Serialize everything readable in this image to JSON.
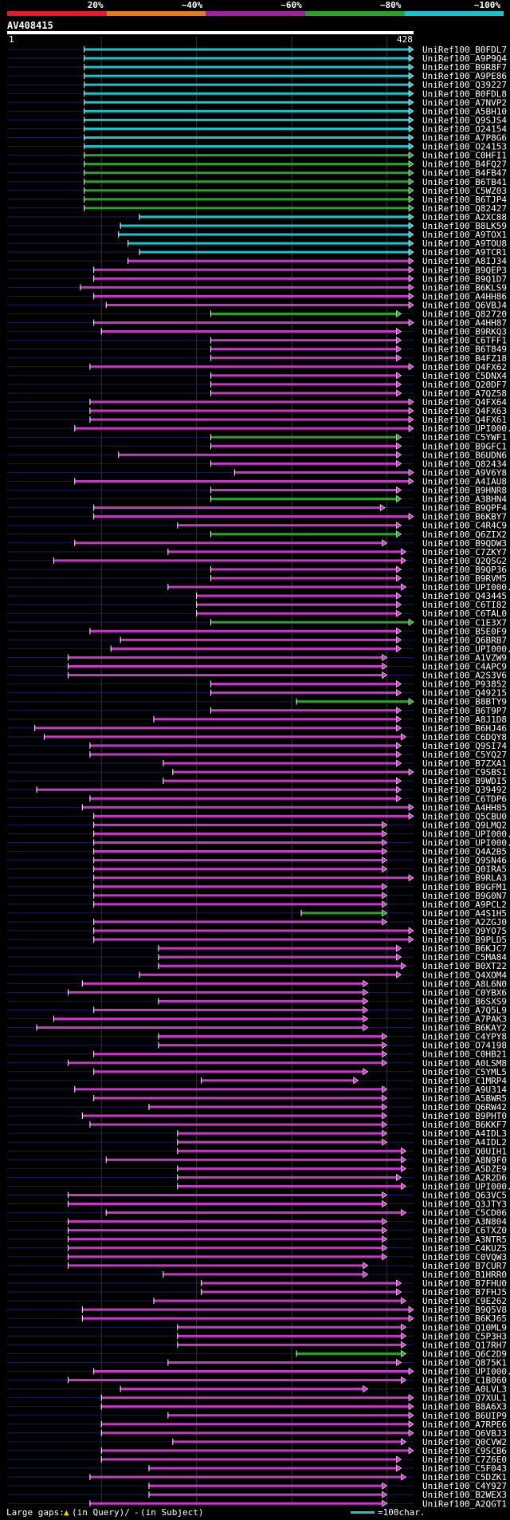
{
  "query_id": "AV408415",
  "axis": {
    "start": "1",
    "end": "428",
    "length": 428
  },
  "identity_scale": [
    {
      "label": "20%",
      "color": "#e8182f"
    },
    {
      "label": "~40%",
      "color": "#e87a1f"
    },
    {
      "label": "~60%",
      "color": "#a020a0"
    },
    {
      "label": "~80%",
      "color": "#2aa12a"
    },
    {
      "label": "~100%",
      "color": "#18c4cc"
    }
  ],
  "legend": {
    "gaps_prefix": "Large gaps: ",
    "gaps_query": "(in Query)/",
    "gaps_subject": "(in Subject)",
    "scale": "=100char."
  },
  "chart_data": {
    "type": "alignment",
    "title": "AV408415",
    "xlim": [
      1,
      428
    ],
    "hits": [
      {
        "id": "UniRef100_B0FDL7",
        "s": 82,
        "e": 428,
        "c": "cyan"
      },
      {
        "id": "UniRef100_A9P9Q4",
        "s": 82,
        "e": 428,
        "c": "cyan"
      },
      {
        "id": "UniRef100_B9R8F7",
        "s": 82,
        "e": 428,
        "c": "cyan"
      },
      {
        "id": "UniRef100_A9PE86",
        "s": 82,
        "e": 428,
        "c": "cyan"
      },
      {
        "id": "UniRef100_Q39227",
        "s": 82,
        "e": 428,
        "c": "cyan"
      },
      {
        "id": "UniRef100_B0FDL8",
        "s": 82,
        "e": 428,
        "c": "cyan"
      },
      {
        "id": "UniRef100_A7NVP2",
        "s": 82,
        "e": 428,
        "c": "cyan"
      },
      {
        "id": "UniRef100_A5BH10",
        "s": 82,
        "e": 428,
        "c": "cyan"
      },
      {
        "id": "UniRef100_Q9SJS4",
        "s": 82,
        "e": 428,
        "c": "cyan"
      },
      {
        "id": "UniRef100_O24154",
        "s": 82,
        "e": 428,
        "c": "cyan"
      },
      {
        "id": "UniRef100_A7P8G6",
        "s": 82,
        "e": 428,
        "c": "cyan"
      },
      {
        "id": "UniRef100_O24153",
        "s": 82,
        "e": 428,
        "c": "cyan"
      },
      {
        "id": "UniRef100_C0HFI1",
        "s": 82,
        "e": 428,
        "c": "green"
      },
      {
        "id": "UniRef100_B4FQ27",
        "s": 82,
        "e": 428,
        "c": "green"
      },
      {
        "id": "UniRef100_B4FB47",
        "s": 82,
        "e": 428,
        "c": "green"
      },
      {
        "id": "UniRef100_B6TB41",
        "s": 82,
        "e": 428,
        "c": "green"
      },
      {
        "id": "UniRef100_C5WZ03",
        "s": 82,
        "e": 428,
        "c": "green"
      },
      {
        "id": "UniRef100_B6TJP4",
        "s": 82,
        "e": 428,
        "c": "green"
      },
      {
        "id": "UniRef100_Q82427",
        "s": 82,
        "e": 428,
        "c": "green"
      },
      {
        "id": "UniRef100_A2XC88",
        "s": 140,
        "e": 428,
        "c": "cyan"
      },
      {
        "id": "UniRef100_B8LK59",
        "s": 120,
        "e": 428,
        "c": "cyan"
      },
      {
        "id": "UniRef100_A9TOX1",
        "s": 118,
        "e": 428,
        "c": "cyan"
      },
      {
        "id": "UniRef100_A9TOU8",
        "s": 128,
        "e": 428,
        "c": "cyan"
      },
      {
        "id": "UniRef100_A9TCR1",
        "s": 140,
        "e": 428,
        "c": "cyan"
      },
      {
        "id": "UniRef100_A8IJ34",
        "s": 128,
        "e": 428,
        "c": "magenta"
      },
      {
        "id": "UniRef100_B9QEP3",
        "s": 92,
        "e": 428,
        "c": "magenta"
      },
      {
        "id": "UniRef100_B9Q1D7",
        "s": 92,
        "e": 428,
        "c": "magenta"
      },
      {
        "id": "UniRef100_B6KLS9",
        "s": 78,
        "e": 428,
        "c": "magenta"
      },
      {
        "id": "UniRef100_A4HH86",
        "s": 92,
        "e": 428,
        "c": "magenta"
      },
      {
        "id": "UniRef100_Q6VBJ4",
        "s": 105,
        "e": 428,
        "c": "magenta"
      },
      {
        "id": "UniRef100_Q82720",
        "s": 215,
        "e": 415,
        "c": "green"
      },
      {
        "id": "UniRef100_A4HH87",
        "s": 92,
        "e": 428,
        "c": "magenta"
      },
      {
        "id": "UniRef100_B9RKQ3",
        "s": 100,
        "e": 415,
        "c": "magenta"
      },
      {
        "id": "UniRef100_C6TFF1",
        "s": 215,
        "e": 415,
        "c": "magenta"
      },
      {
        "id": "UniRef100_B6T849",
        "s": 215,
        "e": 415,
        "c": "magenta"
      },
      {
        "id": "UniRef100_B4FZ18",
        "s": 215,
        "e": 415,
        "c": "magenta"
      },
      {
        "id": "UniRef100_Q4FX62",
        "s": 88,
        "e": 428,
        "c": "magenta"
      },
      {
        "id": "UniRef100_C5DNX4",
        "s": 215,
        "e": 415,
        "c": "magenta"
      },
      {
        "id": "UniRef100_Q20DF7",
        "s": 215,
        "e": 415,
        "c": "magenta"
      },
      {
        "id": "UniRef100_A7QZ58",
        "s": 215,
        "e": 415,
        "c": "magenta"
      },
      {
        "id": "UniRef100_Q4FX64",
        "s": 88,
        "e": 428,
        "c": "magenta"
      },
      {
        "id": "UniRef100_Q4FX63",
        "s": 88,
        "e": 428,
        "c": "magenta"
      },
      {
        "id": "UniRef100_Q4FX61",
        "s": 88,
        "e": 428,
        "c": "magenta"
      },
      {
        "id": "UniRef100_UPI000...",
        "s": 72,
        "e": 428,
        "c": "magenta"
      },
      {
        "id": "UniRef100_C5YWF1",
        "s": 215,
        "e": 415,
        "c": "green"
      },
      {
        "id": "UniRef100_B9GFC1",
        "s": 215,
        "e": 415,
        "c": "magenta"
      },
      {
        "id": "UniRef100_B6UDN6",
        "s": 118,
        "e": 415,
        "c": "magenta"
      },
      {
        "id": "UniRef100_Q82434",
        "s": 215,
        "e": 415,
        "c": "magenta"
      },
      {
        "id": "UniRef100_A9V6Y8",
        "s": 240,
        "e": 428,
        "c": "magenta"
      },
      {
        "id": "UniRef100_A4IAU8",
        "s": 72,
        "e": 428,
        "c": "magenta"
      },
      {
        "id": "UniRef100_B9HNR8",
        "s": 215,
        "e": 415,
        "c": "magenta"
      },
      {
        "id": "UniRef100_A3BHN4",
        "s": 215,
        "e": 415,
        "c": "green"
      },
      {
        "id": "UniRef100_B9QPF4",
        "s": 92,
        "e": 398,
        "c": "magenta"
      },
      {
        "id": "UniRef100_B6KBY7",
        "s": 92,
        "e": 428,
        "c": "magenta"
      },
      {
        "id": "UniRef100_C4R4C9",
        "s": 180,
        "e": 415,
        "c": "magenta"
      },
      {
        "id": "UniRef100_Q6ZIX2",
        "s": 215,
        "e": 415,
        "c": "green"
      },
      {
        "id": "UniRef100_B9QDW3",
        "s": 72,
        "e": 400,
        "c": "magenta"
      },
      {
        "id": "UniRef100_C7ZKY7",
        "s": 170,
        "e": 420,
        "c": "magenta"
      },
      {
        "id": "UniRef100_Q2QSG2",
        "s": 50,
        "e": 420,
        "c": "magenta"
      },
      {
        "id": "UniRef100_B9QP36",
        "s": 215,
        "e": 415,
        "c": "magenta"
      },
      {
        "id": "UniRef100_B9RVM5",
        "s": 215,
        "e": 415,
        "c": "magenta"
      },
      {
        "id": "UniRef100_UPI000...",
        "s": 170,
        "e": 420,
        "c": "magenta"
      },
      {
        "id": "UniRef100_Q43445",
        "s": 200,
        "e": 415,
        "c": "magenta"
      },
      {
        "id": "UniRef100_C6TI82",
        "s": 200,
        "e": 415,
        "c": "magenta"
      },
      {
        "id": "UniRef100_C6TAL0",
        "s": 200,
        "e": 415,
        "c": "magenta"
      },
      {
        "id": "UniRef100_C1E3X7",
        "s": 215,
        "e": 428,
        "c": "green"
      },
      {
        "id": "UniRef100_B5E0F9",
        "s": 88,
        "e": 415,
        "c": "magenta"
      },
      {
        "id": "UniRef100_Q6BRB7",
        "s": 120,
        "e": 415,
        "c": "magenta"
      },
      {
        "id": "UniRef100_UPI000...",
        "s": 110,
        "e": 415,
        "c": "magenta"
      },
      {
        "id": "UniRef100_A1VZW9",
        "s": 65,
        "e": 400,
        "c": "magenta"
      },
      {
        "id": "UniRef100_C4APC9",
        "s": 65,
        "e": 400,
        "c": "magenta"
      },
      {
        "id": "UniRef100_A2S3V6",
        "s": 65,
        "e": 400,
        "c": "magenta"
      },
      {
        "id": "UniRef100_P93852",
        "s": 215,
        "e": 415,
        "c": "magenta"
      },
      {
        "id": "UniRef100_Q49215",
        "s": 215,
        "e": 415,
        "c": "magenta"
      },
      {
        "id": "UniRef100_B8BTY9",
        "s": 305,
        "e": 428,
        "c": "green"
      },
      {
        "id": "UniRef100_B6T9P7",
        "s": 215,
        "e": 415,
        "c": "magenta"
      },
      {
        "id": "UniRef100_A8J1D8",
        "s": 155,
        "e": 415,
        "c": "magenta"
      },
      {
        "id": "UniRef100_B6HJ46",
        "s": 30,
        "e": 415,
        "c": "magenta"
      },
      {
        "id": "UniRef100_C6DQY8",
        "s": 40,
        "e": 420,
        "c": "magenta"
      },
      {
        "id": "UniRef100_Q9SI74",
        "s": 88,
        "e": 415,
        "c": "magenta"
      },
      {
        "id": "UniRef100_C5YQ27",
        "s": 88,
        "e": 415,
        "c": "magenta"
      },
      {
        "id": "UniRef100_B7ZXA1",
        "s": 165,
        "e": 415,
        "c": "magenta"
      },
      {
        "id": "UniRef100_C9SBS1",
        "s": 175,
        "e": 428,
        "c": "magenta"
      },
      {
        "id": "UniRef100_B9WDI5",
        "s": 165,
        "e": 415,
        "c": "magenta"
      },
      {
        "id": "UniRef100_Q39492",
        "s": 32,
        "e": 415,
        "c": "magenta"
      },
      {
        "id": "UniRef100_C6TDP6",
        "s": 88,
        "e": 415,
        "c": "magenta"
      },
      {
        "id": "UniRef100_A4HH85",
        "s": 80,
        "e": 428,
        "c": "magenta"
      },
      {
        "id": "UniRef100_Q5CBU0",
        "s": 92,
        "e": 428,
        "c": "magenta"
      },
      {
        "id": "UniRef100_Q9LMQ2",
        "s": 92,
        "e": 400,
        "c": "magenta"
      },
      {
        "id": "UniRef100_UPI000...",
        "s": 92,
        "e": 400,
        "c": "magenta"
      },
      {
        "id": "UniRef100_UPI000...",
        "s": 92,
        "e": 400,
        "c": "magenta"
      },
      {
        "id": "UniRef100_Q4A2B5",
        "s": 92,
        "e": 400,
        "c": "magenta"
      },
      {
        "id": "UniRef100_Q9SN46",
        "s": 92,
        "e": 400,
        "c": "magenta"
      },
      {
        "id": "UniRef100_Q0IRA5",
        "s": 92,
        "e": 400,
        "c": "magenta"
      },
      {
        "id": "UniRef100_B9RLA3",
        "s": 92,
        "e": 428,
        "c": "magenta"
      },
      {
        "id": "UniRef100_B9GFM1",
        "s": 92,
        "e": 400,
        "c": "magenta"
      },
      {
        "id": "UniRef100_B9G0N7",
        "s": 92,
        "e": 400,
        "c": "magenta"
      },
      {
        "id": "UniRef100_A9PCL2",
        "s": 92,
        "e": 400,
        "c": "magenta"
      },
      {
        "id": "UniRef100_A4S1H5",
        "s": 310,
        "e": 400,
        "c": "green"
      },
      {
        "id": "UniRef100_A2ZGJ0",
        "s": 92,
        "e": 400,
        "c": "magenta"
      },
      {
        "id": "UniRef100_Q9YO75",
        "s": 92,
        "e": 428,
        "c": "magenta"
      },
      {
        "id": "UniRef100_B9PLD5",
        "s": 92,
        "e": 428,
        "c": "magenta"
      },
      {
        "id": "UniRef100_B6KJC7",
        "s": 160,
        "e": 415,
        "c": "magenta"
      },
      {
        "id": "UniRef100_C5MA84",
        "s": 160,
        "e": 415,
        "c": "magenta"
      },
      {
        "id": "UniRef100_B0XT22",
        "s": 160,
        "e": 420,
        "c": "magenta"
      },
      {
        "id": "UniRef100_Q4XOM4",
        "s": 140,
        "e": 415,
        "c": "magenta"
      },
      {
        "id": "UniRef100_A8L6N0",
        "s": 80,
        "e": 380,
        "c": "magenta"
      },
      {
        "id": "UniRef100_C0YBX6",
        "s": 65,
        "e": 380,
        "c": "magenta"
      },
      {
        "id": "UniRef100_B6SXS9",
        "s": 160,
        "e": 380,
        "c": "magenta"
      },
      {
        "id": "UniRef100_A7Q5L9",
        "s": 92,
        "e": 380,
        "c": "magenta"
      },
      {
        "id": "UniRef100_A7PAK3",
        "s": 50,
        "e": 380,
        "c": "magenta"
      },
      {
        "id": "UniRef100_B6KAY2",
        "s": 32,
        "e": 380,
        "c": "magenta"
      },
      {
        "id": "UniRef100_C4YPY8",
        "s": 160,
        "e": 400,
        "c": "magenta"
      },
      {
        "id": "UniRef100_O74198",
        "s": 160,
        "e": 400,
        "c": "magenta"
      },
      {
        "id": "UniRef100_C0HB21",
        "s": 92,
        "e": 400,
        "c": "magenta"
      },
      {
        "id": "UniRef100_A0LSM8",
        "s": 65,
        "e": 400,
        "c": "magenta"
      },
      {
        "id": "UniRef100_C5YML5",
        "s": 92,
        "e": 380,
        "c": "magenta"
      },
      {
        "id": "UniRef100_C1MRP4",
        "s": 205,
        "e": 370,
        "c": "magenta"
      },
      {
        "id": "UniRef100_A9U314",
        "s": 72,
        "e": 400,
        "c": "magenta"
      },
      {
        "id": "UniRef100_A5BWR5",
        "s": 92,
        "e": 400,
        "c": "magenta"
      },
      {
        "id": "UniRef100_Q6RW42",
        "s": 150,
        "e": 400,
        "c": "magenta"
      },
      {
        "id": "UniRef100_B9PHT0",
        "s": 80,
        "e": 400,
        "c": "magenta"
      },
      {
        "id": "UniRef100_B6KKF7",
        "s": 88,
        "e": 400,
        "c": "magenta"
      },
      {
        "id": "UniRef100_A4IDL3",
        "s": 180,
        "e": 400,
        "c": "magenta"
      },
      {
        "id": "UniRef100_A4IDL2",
        "s": 180,
        "e": 400,
        "c": "magenta"
      },
      {
        "id": "UniRef100_Q0UIH1",
        "s": 180,
        "e": 420,
        "c": "magenta"
      },
      {
        "id": "UniRef100_A8N9F0",
        "s": 105,
        "e": 420,
        "c": "magenta"
      },
      {
        "id": "UniRef100_A5DZE9",
        "s": 180,
        "e": 420,
        "c": "magenta"
      },
      {
        "id": "UniRef100_A2R2D6",
        "s": 180,
        "e": 415,
        "c": "magenta"
      },
      {
        "id": "UniRef100_UPI000...",
        "s": 180,
        "e": 420,
        "c": "magenta"
      },
      {
        "id": "UniRef100_Q63VC5",
        "s": 65,
        "e": 400,
        "c": "magenta"
      },
      {
        "id": "UniRef100_Q3JTY3",
        "s": 65,
        "e": 400,
        "c": "magenta"
      },
      {
        "id": "UniRef100_C5CD06",
        "s": 105,
        "e": 420,
        "c": "magenta"
      },
      {
        "id": "UniRef100_A3N804",
        "s": 65,
        "e": 400,
        "c": "magenta"
      },
      {
        "id": "UniRef100_C6TXZ0",
        "s": 65,
        "e": 400,
        "c": "magenta"
      },
      {
        "id": "UniRef100_A3NTR5",
        "s": 65,
        "e": 400,
        "c": "magenta"
      },
      {
        "id": "UniRef100_C4KUZ5",
        "s": 65,
        "e": 400,
        "c": "magenta"
      },
      {
        "id": "UniRef100_C0VQW3",
        "s": 65,
        "e": 400,
        "c": "magenta"
      },
      {
        "id": "UniRef100_B7CUR7",
        "s": 65,
        "e": 380,
        "c": "magenta"
      },
      {
        "id": "UniRef100_B1HRR0",
        "s": 165,
        "e": 380,
        "c": "magenta"
      },
      {
        "id": "UniRef100_B7FHU0",
        "s": 205,
        "e": 415,
        "c": "magenta"
      },
      {
        "id": "UniRef100_B7FHJ5",
        "s": 205,
        "e": 415,
        "c": "magenta"
      },
      {
        "id": "UniRef100_C9E262",
        "s": 155,
        "e": 420,
        "c": "magenta"
      },
      {
        "id": "UniRef100_B9Q5V8",
        "s": 80,
        "e": 428,
        "c": "magenta"
      },
      {
        "id": "UniRef100_B6KJ65",
        "s": 80,
        "e": 428,
        "c": "magenta"
      },
      {
        "id": "UniRef100_Q10ML9",
        "s": 180,
        "e": 420,
        "c": "magenta"
      },
      {
        "id": "UniRef100_C5P3H3",
        "s": 180,
        "e": 420,
        "c": "magenta"
      },
      {
        "id": "UniRef100_Q17RH7",
        "s": 180,
        "e": 420,
        "c": "magenta"
      },
      {
        "id": "UniRef100_Q6C2D9",
        "s": 305,
        "e": 420,
        "c": "green"
      },
      {
        "id": "UniRef100_Q875K1",
        "s": 170,
        "e": 415,
        "c": "magenta"
      },
      {
        "id": "UniRef100_UPI000...",
        "s": 92,
        "e": 428,
        "c": "magenta"
      },
      {
        "id": "UniRef100_C1B060",
        "s": 65,
        "e": 420,
        "c": "magenta"
      },
      {
        "id": "UniRef100_A0LVL3",
        "s": 120,
        "e": 380,
        "c": "magenta"
      },
      {
        "id": "UniRef100_Q7XUL1",
        "s": 100,
        "e": 428,
        "c": "magenta"
      },
      {
        "id": "UniRef100_B8A6X3",
        "s": 100,
        "e": 428,
        "c": "magenta"
      },
      {
        "id": "UniRef100_B6UIP9",
        "s": 170,
        "e": 428,
        "c": "magenta"
      },
      {
        "id": "UniRef100_A7RPE6",
        "s": 100,
        "e": 428,
        "c": "magenta"
      },
      {
        "id": "UniRef100_Q6VBJ3",
        "s": 100,
        "e": 428,
        "c": "magenta"
      },
      {
        "id": "UniRef100_Q0CVW2",
        "s": 175,
        "e": 420,
        "c": "magenta"
      },
      {
        "id": "UniRef100_C9SCB6",
        "s": 100,
        "e": 428,
        "c": "magenta"
      },
      {
        "id": "UniRef100_C7Z6E0",
        "s": 100,
        "e": 415,
        "c": "magenta"
      },
      {
        "id": "UniRef100_C5F043",
        "s": 150,
        "e": 415,
        "c": "magenta"
      },
      {
        "id": "UniRef100_C5DZK1",
        "s": 88,
        "e": 420,
        "c": "magenta"
      },
      {
        "id": "UniRef100_C4Y927",
        "s": 150,
        "e": 400,
        "c": "magenta"
      },
      {
        "id": "UniRef100_B2WEX3",
        "s": 150,
        "e": 400,
        "c": "magenta"
      },
      {
        "id": "UniRef100_A2QGT1",
        "s": 88,
        "e": 400,
        "c": "magenta"
      }
    ]
  }
}
